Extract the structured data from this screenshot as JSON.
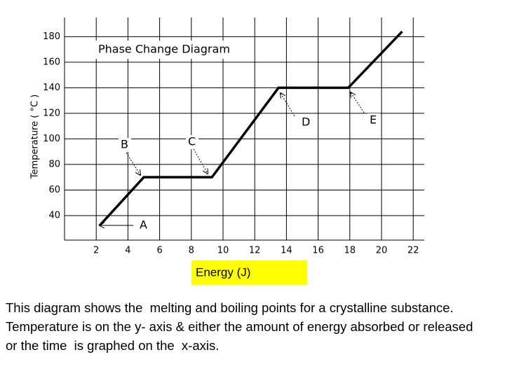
{
  "chart_data": {
    "type": "line",
    "title": "Phase Change Diagram",
    "x_label": "Energy (J)",
    "y_label": "Temperature ( °C )",
    "x": [
      2.2,
      5.0,
      9.3,
      13.5,
      17.9,
      21.3
    ],
    "series": [
      {
        "color": "#000000",
        "values": [
          32,
          70,
          70,
          140,
          140,
          184
        ]
      }
    ],
    "xlim": [
      0,
      22.7
    ],
    "xticks": [
      2,
      4,
      6,
      8,
      10,
      12,
      14,
      16,
      18,
      20,
      22
    ],
    "ylim": [
      20.8,
      195
    ],
    "yticks": [
      40,
      60,
      80,
      100,
      120,
      140,
      160,
      180
    ],
    "grid": true,
    "annotations": [
      "A",
      "B",
      "C",
      "D",
      "E"
    ]
  },
  "caption": "This diagram shows the  melting and boiling points for a crystalline substance.  Temperature is on the y- axis & either the amount of energy absorbed or released  or the time  is graphed on the  x-axis."
}
